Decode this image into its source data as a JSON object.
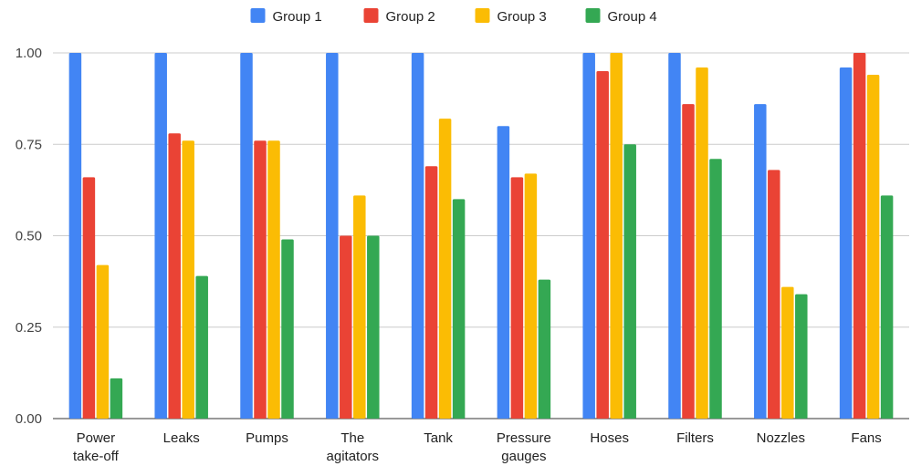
{
  "chart_data": {
    "type": "bar",
    "title": "",
    "xlabel": "",
    "ylabel": "",
    "ylim": [
      0,
      1
    ],
    "yticks": [
      0,
      0.25,
      0.5,
      0.75,
      1
    ],
    "ytick_labels": [
      "0.00",
      "0.25",
      "0.50",
      "0.75",
      "1.00"
    ],
    "grid": true,
    "legend_position": "top",
    "categories": [
      [
        "Power",
        "take-off"
      ],
      [
        "Leaks"
      ],
      [
        "Pumps"
      ],
      [
        "The",
        "agitators"
      ],
      [
        "Tank"
      ],
      [
        "Pressure",
        "gauges"
      ],
      [
        "Hoses"
      ],
      [
        "Filters"
      ],
      [
        "Nozzles"
      ],
      [
        "Fans"
      ]
    ],
    "series": [
      {
        "name": "Group 1",
        "color": "#4285F4",
        "values": [
          1.0,
          1.0,
          1.0,
          1.0,
          1.0,
          0.8,
          1.0,
          1.0,
          0.86,
          0.96
        ]
      },
      {
        "name": "Group 2",
        "color": "#EA4335",
        "values": [
          0.66,
          0.78,
          0.76,
          0.5,
          0.69,
          0.66,
          0.95,
          0.86,
          0.68,
          1.0
        ]
      },
      {
        "name": "Group 3",
        "color": "#FBBC04",
        "values": [
          0.42,
          0.76,
          0.76,
          0.61,
          0.82,
          0.67,
          1.0,
          0.96,
          0.36,
          0.94
        ]
      },
      {
        "name": "Group 4",
        "color": "#34A853",
        "values": [
          0.11,
          0.39,
          0.49,
          0.5,
          0.6,
          0.38,
          0.75,
          0.71,
          0.34,
          0.61
        ]
      }
    ]
  }
}
